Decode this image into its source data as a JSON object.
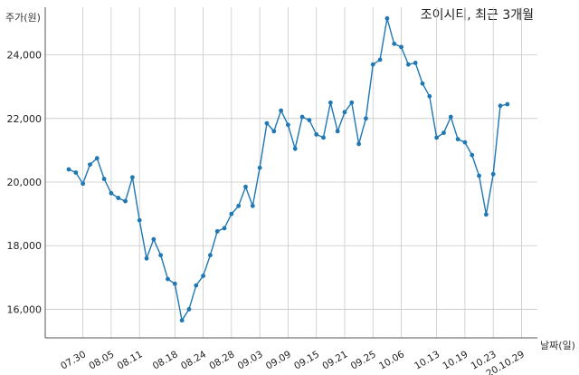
{
  "chart_data": {
    "type": "line",
    "title": "조이시티, 최근 3개월",
    "ylabel": "주가(원)",
    "xlabel": "날짜(일)",
    "ylim": [
      15100,
      25500
    ],
    "yticks": [
      16000,
      18000,
      20000,
      22000,
      24000
    ],
    "ytick_labels": [
      "16,000",
      "18,000",
      "20,000",
      "22,000",
      "24,000"
    ],
    "xtick_labels": [
      "07.30",
      "08.05",
      "08.11",
      "08.18",
      "08.24",
      "08.28",
      "09.03",
      "09.09",
      "09.15",
      "09.21",
      "09.25",
      "10.06",
      "10.13",
      "10.19",
      "10.23",
      "20.10.29"
    ],
    "xtick_index": [
      2,
      6,
      10,
      15,
      19,
      23,
      27,
      31,
      35,
      39,
      43,
      47,
      52,
      56,
      60,
      64
    ],
    "grid": true,
    "line_color": "#1f77b4",
    "series": [
      {
        "values": [
          20400,
          20300,
          19950,
          20550,
          20750,
          20100,
          19650,
          19500,
          19400,
          20150,
          18800,
          17600,
          18200,
          17700,
          16950,
          16800,
          15650,
          16000,
          16750,
          17050,
          17700,
          18450,
          18550,
          19000,
          19250,
          19850,
          19250,
          20450,
          21850,
          21600,
          22250,
          21800,
          21050,
          22050,
          21950,
          21500,
          21400,
          22500,
          21600,
          22200,
          22500,
          21200,
          22000,
          23700,
          23850,
          25150,
          24350,
          24250,
          23700,
          23750,
          23100,
          22700,
          21400,
          21550,
          22050,
          21350,
          21250,
          20850,
          20200,
          18980,
          20250,
          22400,
          22450
        ]
      }
    ]
  }
}
